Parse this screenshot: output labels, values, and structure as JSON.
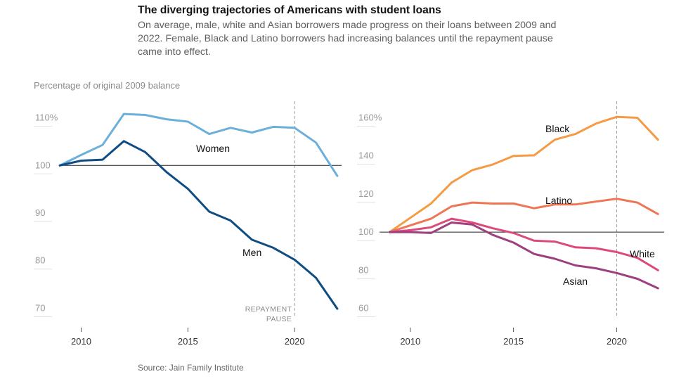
{
  "title": "The diverging trajectories of Americans with student loans",
  "subtitle": "On average, male, white and Asian borrowers made progress on their loans between 2009 and 2022. Female, Black and Latino borrowers had increasing balances until the repayment pause came into effect.",
  "y_axis_label": "Percentage of original 2009 balance",
  "source": "Source: Jain Family Institute",
  "chart_data": [
    {
      "type": "line",
      "x": [
        2009,
        2010,
        2011,
        2012,
        2013,
        2014,
        2015,
        2016,
        2017,
        2018,
        2019,
        2020,
        2021,
        2022
      ],
      "ylim": [
        68,
        112
      ],
      "xlim": [
        2008.7,
        2022.2
      ],
      "x_ticks": [
        2010,
        2015,
        2020
      ],
      "y_ticks": [
        110,
        100,
        90,
        80,
        70
      ],
      "y_tick_labels": [
        "110%",
        "100",
        "90",
        "80",
        "70"
      ],
      "baseline": 100,
      "annotation": {
        "x": 2020,
        "label_line1": "REPAYMENT",
        "label_line2": "PAUSE"
      },
      "series": [
        {
          "name": "Women",
          "color": "#6bafdb",
          "values": [
            100,
            102.2,
            104.3,
            110.8,
            110.6,
            109.7,
            109.2,
            106.6,
            107.9,
            106.9,
            108.1,
            107.9,
            104.8,
            97.8
          ]
        },
        {
          "name": "Men",
          "color": "#0f4c81",
          "values": [
            100,
            101,
            101.2,
            105.1,
            102.8,
            98.6,
            95.1,
            90.3,
            88.4,
            84.4,
            82.7,
            80.2,
            76.4,
            69.9
          ]
        }
      ]
    },
    {
      "type": "line",
      "x": [
        2009,
        2010,
        2011,
        2012,
        2013,
        2014,
        2015,
        2016,
        2017,
        2018,
        2019,
        2020,
        2021,
        2022
      ],
      "ylim": [
        55,
        165
      ],
      "xlim": [
        2008.1,
        2022.3
      ],
      "x_ticks": [
        2010,
        2015,
        2020
      ],
      "y_ticks": [
        160,
        140,
        120,
        100,
        80,
        60
      ],
      "y_tick_labels": [
        "160%",
        "140",
        "120",
        "100",
        "80",
        "60"
      ],
      "baseline": 100,
      "annotation": {
        "x": 2020
      },
      "series": [
        {
          "name": "Black",
          "color": "#f59b45",
          "values": [
            100,
            107.5,
            115,
            126,
            132.5,
            135.5,
            140,
            140.3,
            148.5,
            151.5,
            157,
            160.5,
            160,
            148.5
          ]
        },
        {
          "name": "Latino",
          "color": "#ef7655",
          "values": [
            100,
            103.5,
            107,
            113.5,
            115.5,
            115,
            115,
            112.5,
            114.5,
            114.5,
            116,
            117.5,
            115.5,
            109.5
          ]
        },
        {
          "name": "White",
          "color": "#dc4a7b",
          "values": [
            100,
            101,
            102.5,
            107,
            105,
            102,
            99.5,
            95.5,
            95,
            92,
            91.5,
            89.5,
            86.5,
            80
          ]
        },
        {
          "name": "Asian",
          "color": "#9e3f7f",
          "values": [
            100,
            100,
            99.5,
            105,
            104,
            98.5,
            94.5,
            88.5,
            86,
            82.5,
            81,
            78.5,
            75.5,
            70.5
          ]
        }
      ]
    }
  ]
}
